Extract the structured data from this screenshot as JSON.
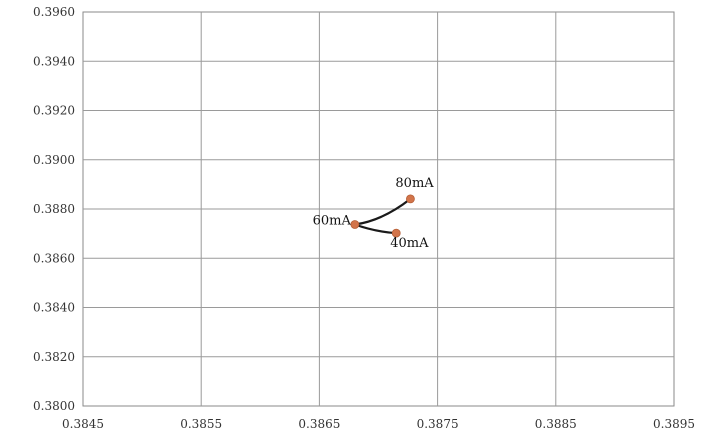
{
  "chart_data": {
    "type": "scatter",
    "title": "",
    "xlabel": "",
    "ylabel": "",
    "xlim": [
      0.3845,
      0.3895
    ],
    "ylim": [
      0.38,
      0.396
    ],
    "x_ticks": [
      "0.3845",
      "0.3855",
      "0.3865",
      "0.3875",
      "0.3885",
      "0.3895"
    ],
    "y_ticks": [
      "0.3960",
      "0.3940",
      "0.3920",
      "0.3900",
      "0.3880",
      "0.3860",
      "0.3840",
      "0.3820",
      "0.3800"
    ],
    "grid": true,
    "legend": "none",
    "series": [
      {
        "points": [
          {
            "x": 0.38727,
            "y": 0.38841,
            "label": "80mA"
          },
          {
            "x": 0.3868,
            "y": 0.38737,
            "label": "60mA"
          },
          {
            "x": 0.38715,
            "y": 0.38702,
            "label": "40mA"
          }
        ],
        "line_color": "#1a1a1a",
        "marker_color": "#d2744a"
      }
    ]
  }
}
